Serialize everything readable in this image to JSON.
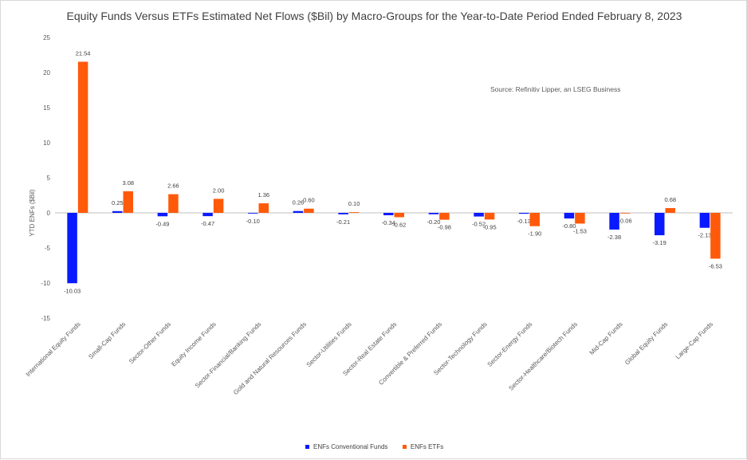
{
  "chart_data": {
    "type": "bar",
    "title": "Equity Funds Versus ETFs Estimated Net Flows ($Bil) by Macro-Groups for the Year-to-Date Period Ended February 8, 2023",
    "xlabel": "",
    "ylabel": "YTD ENFs ($Bil)",
    "ylim": [
      -15,
      25
    ],
    "yticks": [
      "25",
      "20",
      "15",
      "10",
      "5",
      "0",
      "-5",
      "-10",
      "-15"
    ],
    "ytick_values": [
      25,
      20,
      15,
      10,
      5,
      0,
      -5,
      -10,
      -15
    ],
    "grid": false,
    "legend_position": "bottom",
    "annotation": "Source: Refinitiv Lipper, an LSEG Business",
    "categories": [
      "International Equity Funds",
      "Small-Cap Funds",
      "Sector-Other Funds",
      "Equity Income Funds",
      "Sector-Financial/Banking Funds",
      "Gold and Natural Resources Funds",
      "Sector-Utilities Funds",
      "Sector-Real Estate Funds",
      "Convertible & Preferred Funds",
      "Sector-Technology Funds",
      "Sector-Energy Funds",
      "Sector-Healthcare/Biotech Funds",
      "Mid-Cap Funds",
      "Global Equity Funds",
      "Large-Cap Funds"
    ],
    "series": [
      {
        "name": "ENFs Conventional Funds",
        "color": "#0a1aff",
        "values": [
          -10.03,
          0.25,
          -0.49,
          -0.47,
          -0.1,
          0.26,
          -0.21,
          -0.34,
          -0.2,
          -0.52,
          -0.13,
          -0.8,
          -2.38,
          -3.19,
          -2.13
        ],
        "labels": [
          "-10.03",
          "0.25",
          "-0.49",
          "-0.47",
          "-0.10",
          "0.26",
          "-0.21",
          "-0.34",
          "-0.20",
          "-0.52",
          "-0.13",
          "-0.80",
          "-2.38",
          "-3.19",
          "-2.13"
        ]
      },
      {
        "name": "ENFs ETFs",
        "color": "#ff5a0a",
        "values": [
          21.54,
          3.08,
          2.66,
          2.0,
          1.36,
          0.6,
          0.1,
          -0.62,
          -0.98,
          -0.95,
          -1.9,
          -1.53,
          -0.06,
          0.68,
          -6.53
        ],
        "labels": [
          "21.54",
          "3.08",
          "2.66",
          "2.00",
          "1.36",
          "0.60",
          "0.10",
          "-0.62",
          "-0.98",
          "-0.95",
          "-1.90",
          "-1.53",
          "-0.06",
          "0.68",
          "-6.53"
        ]
      }
    ]
  }
}
